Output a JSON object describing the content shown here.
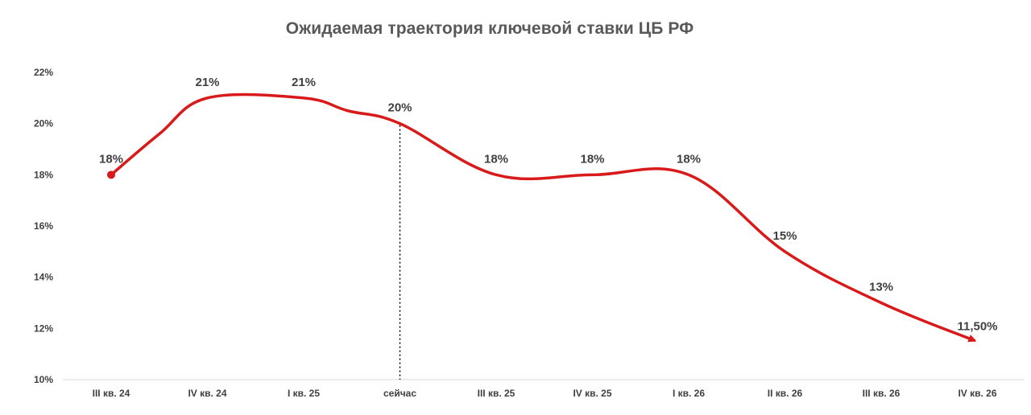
{
  "chart_data": {
    "type": "line",
    "title": "Ожидаемая траектория ключевой ставки ЦБ РФ",
    "xlabel": "",
    "ylabel": "",
    "categories": [
      "III кв. 24",
      "IV кв. 24",
      "I кв. 25",
      "сейчас",
      "III кв. 25",
      "IV кв. 25",
      "I кв. 26",
      "II кв. 26",
      "III кв. 26",
      "IV кв. 26"
    ],
    "series": [
      {
        "values": [
          18,
          21,
          21,
          20,
          18,
          18,
          18,
          15,
          13,
          11.5
        ],
        "color": "#d91a1a"
      }
    ],
    "data_labels": [
      "18%",
      "21%",
      "21%",
      "20%",
      "18%",
      "18%",
      "18%",
      "15%",
      "13%",
      "11,50%"
    ],
    "ylim": [
      10,
      22
    ],
    "yticks": [
      10,
      12,
      14,
      16,
      18,
      20,
      22
    ],
    "ytick_labels": [
      "10%",
      "12%",
      "14%",
      "16%",
      "18%",
      "20%",
      "22%"
    ],
    "marker_now": "сейчас",
    "grid": false,
    "legend": "none",
    "line_color": "#d91a1a",
    "text_color": "#404040"
  }
}
